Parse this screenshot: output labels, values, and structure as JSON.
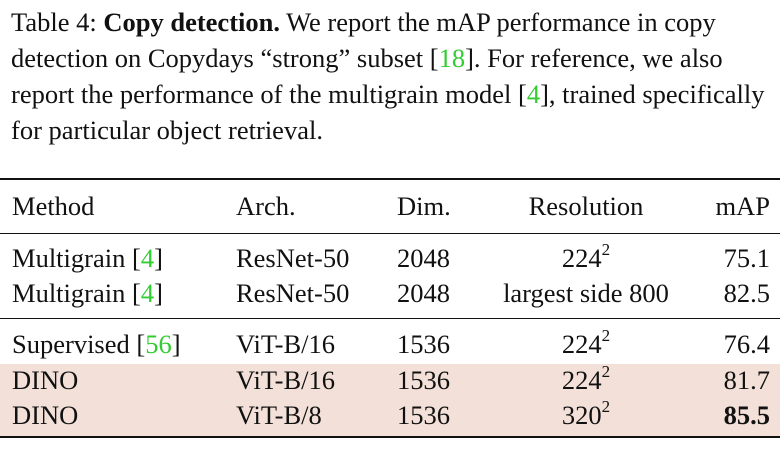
{
  "caption": {
    "label": "Table 4:",
    "title": "Copy detection.",
    "part1": "We report the mAP performance in copy detection on Copydays “strong” subset [",
    "ref1": "18",
    "part2": "]. For reference, we also report the performance of the multigrain model [",
    "ref2": "4",
    "part3": "], trained specifically for particular object retrieval."
  },
  "table": {
    "headers": [
      "Method",
      "Arch.",
      "Dim.",
      "Resolution",
      "mAP"
    ],
    "rows": [
      {
        "method": "Multigrain",
        "ref": "4",
        "arch": "ResNet-50",
        "dim": "2048",
        "res_base": "224",
        "res_exp": "2",
        "map": "75.1"
      },
      {
        "method": "Multigrain",
        "ref": "4",
        "arch": "ResNet-50",
        "dim": "2048",
        "res_text": "largest side 800",
        "map": "82.5"
      },
      {
        "method": "Supervised",
        "ref": "56",
        "arch": "ViT-B/16",
        "dim": "1536",
        "res_base": "224",
        "res_exp": "2",
        "map": "76.4"
      },
      {
        "method": "DINO",
        "arch": "ViT-B/16",
        "dim": "1536",
        "res_base": "224",
        "res_exp": "2",
        "map": "81.7"
      },
      {
        "method": "DINO",
        "arch": "ViT-B/8",
        "dim": "1536",
        "res_base": "320",
        "res_exp": "2",
        "map": "85.5"
      }
    ]
  },
  "colors": {
    "citation": "#33cc33",
    "highlight": "#f3e0d9"
  }
}
